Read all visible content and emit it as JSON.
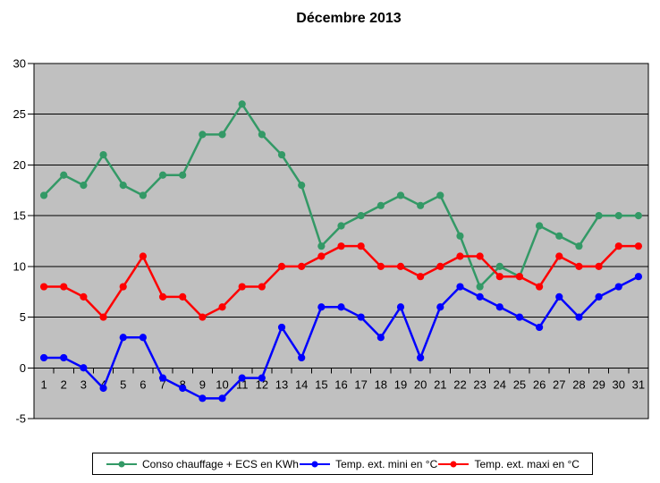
{
  "title": "Décembre 2013",
  "chart_data": {
    "type": "line",
    "title": "Décembre 2013",
    "categories": [
      "1",
      "2",
      "3",
      "4",
      "5",
      "6",
      "7",
      "8",
      "9",
      "10",
      "11",
      "12",
      "13",
      "14",
      "15",
      "16",
      "17",
      "18",
      "19",
      "20",
      "21",
      "22",
      "23",
      "24",
      "25",
      "26",
      "27",
      "28",
      "29",
      "30",
      "31"
    ],
    "series": [
      {
        "name": "Conso chauffage + ECS en KWh",
        "color": "#339966",
        "values": [
          17,
          19,
          18,
          21,
          18,
          17,
          19,
          19,
          23,
          23,
          26,
          23,
          21,
          18,
          12,
          14,
          15,
          16,
          17,
          16,
          17,
          13,
          8,
          10,
          9,
          14,
          13,
          12,
          15,
          15,
          15
        ]
      },
      {
        "name": "Temp. ext. mini en °C",
        "color": "#0000FF",
        "values": [
          1,
          1,
          0,
          -2,
          3,
          3,
          -1,
          -2,
          -3,
          -3,
          -1,
          -1,
          4,
          1,
          6,
          6,
          5,
          3,
          6,
          1,
          6,
          8,
          7,
          6,
          5,
          4,
          7,
          5,
          7,
          8,
          9
        ]
      },
      {
        "name": "Temp. ext. maxi en °C",
        "color": "#FF0000",
        "values": [
          8,
          8,
          7,
          5,
          8,
          11,
          7,
          7,
          5,
          6,
          8,
          8,
          10,
          10,
          11,
          12,
          12,
          10,
          10,
          9,
          10,
          11,
          11,
          9,
          9,
          8,
          11,
          10,
          10,
          12,
          12
        ]
      }
    ],
    "xlabel": "",
    "ylabel": "",
    "ylim": [
      -5,
      30
    ],
    "yticks": [
      -5,
      0,
      5,
      10,
      15,
      20,
      25,
      30
    ],
    "grid": true,
    "gridline_color": "#000000",
    "plot_bg": "#C0C0C0",
    "legend_position": "bottom"
  }
}
